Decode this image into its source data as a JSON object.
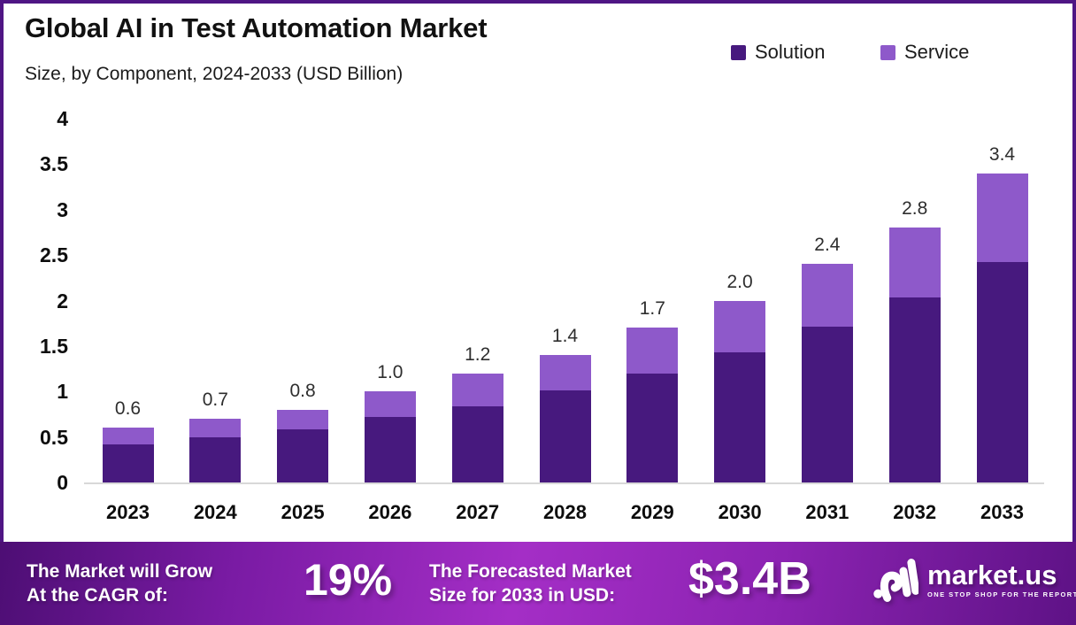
{
  "page": {
    "title": "Global AI in Test Automation Market",
    "subtitle": "Size, by Component, 2024-2033 (USD Billion)"
  },
  "legend": {
    "items": [
      {
        "label": "Solution",
        "color": "#47197E"
      },
      {
        "label": "Service",
        "color": "#8E59CA"
      }
    ]
  },
  "chart_data": {
    "type": "bar",
    "stacked": true,
    "title": "Global AI in Test Automation Market Size, by Component, 2024-2033 (USD Billion)",
    "categories": [
      "2023",
      "2024",
      "2025",
      "2026",
      "2027",
      "2028",
      "2029",
      "2030",
      "2031",
      "2032",
      "2033"
    ],
    "series": [
      {
        "name": "Solution",
        "color": "#47197E",
        "values": [
          0.42,
          0.5,
          0.58,
          0.72,
          0.84,
          1.01,
          1.2,
          1.43,
          1.71,
          2.03,
          2.42
        ]
      },
      {
        "name": "Service",
        "color": "#8E59CA",
        "values": [
          0.18,
          0.2,
          0.22,
          0.28,
          0.36,
          0.39,
          0.5,
          0.57,
          0.69,
          0.77,
          0.98
        ]
      }
    ],
    "total_labels": [
      "0.6",
      "0.7",
      "0.8",
      "1.0",
      "1.2",
      "1.4",
      "1.7",
      "2.0",
      "2.4",
      "2.8",
      "3.4"
    ],
    "xlabel": "",
    "ylabel": "",
    "ylim": [
      0,
      4
    ],
    "yticks": [
      "4",
      "3.5",
      "3",
      "2.5",
      "2",
      "1.5",
      "1",
      "0.5",
      "0"
    ],
    "grid": false,
    "legend_position": "top-right"
  },
  "footer": {
    "cagr_label": "The Market will Grow\nAt the CAGR of:",
    "cagr_value": "19%",
    "forecast_label": "The Forecasted Market\nSize for 2033 in USD:",
    "forecast_value": "$3.4B",
    "logo": {
      "name": "market.us",
      "tagline": "ONE STOP SHOP FOR THE REPORTS"
    }
  },
  "colors": {
    "solution": "#47197E",
    "service": "#8E59CA",
    "frame_border": "#4F1584",
    "footer_gradient": [
      "#4D0E74",
      "#A42EC6",
      "#5E1286"
    ],
    "axis_line": "#d8d8d8"
  }
}
